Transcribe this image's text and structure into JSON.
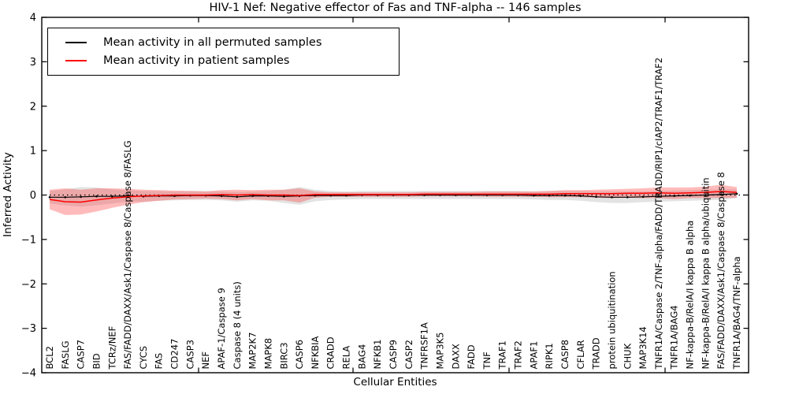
{
  "figure": {
    "title": "HIV-1 Nef: Negative effector of Fas and TNF-alpha -- 146 samples",
    "xlabel": "Cellular Entities",
    "ylabel": "Inferred Activity"
  },
  "legend": {
    "items": [
      {
        "label": "Mean activity in all permuted samples",
        "color": "#000000"
      },
      {
        "label": "Mean activity in patient samples",
        "color": "#ff0000"
      }
    ]
  },
  "axes": {
    "ytick_labels": [
      "4",
      "3",
      "2",
      "1",
      "0",
      "−1",
      "−2",
      "−3",
      "−4"
    ],
    "yticks": [
      4,
      3,
      2,
      1,
      0,
      -1,
      -2,
      -3,
      -4
    ],
    "ylim": [
      -4,
      4
    ]
  },
  "chart_data": {
    "type": "line",
    "title": "HIV-1 Nef: Negative effector of Fas and TNF-alpha -- 146 samples",
    "xlabel": "Cellular Entities",
    "ylabel": "Inferred Activity",
    "ylim": [
      -4,
      4
    ],
    "grid": false,
    "zero_reference_line": true,
    "legend_position": "upper left",
    "categories": [
      "BCL2",
      "FASLG",
      "CASP7",
      "BID",
      "TCRz/NEF",
      "FAS/FADD/DAXX/Ask1/Caspase 8/Caspase 8/FASLG",
      "CYCS",
      "FAS",
      "CD247",
      "CASP3",
      "NEF",
      "APAF-1/Caspase 9",
      "Caspase 8 (4 units)",
      "MAP2K7",
      "MAPK8",
      "BIRC3",
      "CASP6",
      "NFKBIA",
      "CRADD",
      "RELA",
      "BAG4",
      "NFKB1",
      "CASP9",
      "CASP2",
      "TNFRSF1A",
      "MAP3K5",
      "DAXX",
      "FADD",
      "TNF",
      "TRAF1",
      "TRAF2",
      "APAF1",
      "RIPK1",
      "CASP8",
      "CFLAR",
      "TRADD",
      "protein ubiquitination",
      "CHUK",
      "MAP3K14",
      "TNFR1A/Caspase 2/TNF-alpha/FADD/TRADD/RIP1/cIAP2/TRAF1/TRAF2",
      "TNFR1A/BAG4",
      "NF-kappa-B/RelA/I kappa B alpha",
      "NF-kappa-B/RelA/I kappa B alpha/ubiquitin",
      "FAS/FADD/DAXX/Ask1/Caspase 8/Caspase 8",
      "TNFR1A/BAG4/TNF-alpha"
    ],
    "series": [
      {
        "name": "Mean activity in all permuted samples",
        "color": "#000000",
        "band_color": "#b0b0b0",
        "band_opacity": 0.35,
        "markers": true,
        "mean": [
          -0.05,
          -0.05,
          -0.04,
          -0.03,
          -0.03,
          -0.02,
          -0.03,
          -0.02,
          -0.02,
          -0.01,
          -0.01,
          -0.02,
          -0.04,
          -0.02,
          -0.02,
          -0.03,
          -0.02,
          -0.01,
          -0.01,
          -0.01,
          0,
          0,
          0,
          0,
          0,
          0,
          0,
          0,
          0,
          0,
          0,
          -0.01,
          -0.01,
          -0.01,
          -0.02,
          -0.04,
          -0.05,
          -0.05,
          -0.04,
          -0.03,
          -0.02,
          -0.01,
          0,
          0.01,
          0.03
        ],
        "std": [
          0.14,
          0.18,
          0.22,
          0.2,
          0.16,
          0.13,
          0.12,
          0.11,
          0.1,
          0.1,
          0.1,
          0.1,
          0.11,
          0.1,
          0.11,
          0.15,
          0.2,
          0.13,
          0.1,
          0.09,
          0.09,
          0.09,
          0.09,
          0.09,
          0.09,
          0.09,
          0.09,
          0.09,
          0.09,
          0.09,
          0.09,
          0.09,
          0.1,
          0.1,
          0.11,
          0.12,
          0.13,
          0.13,
          0.12,
          0.12,
          0.12,
          0.12,
          0.12,
          0.12,
          0.1
        ]
      },
      {
        "name": "Mean activity in patient samples",
        "color": "#ff0000",
        "band_color": "#ff2a2a",
        "band_opacity": 0.32,
        "markers": false,
        "mean": [
          -0.1,
          -0.15,
          -0.16,
          -0.11,
          -0.07,
          -0.04,
          -0.02,
          -0.01,
          0,
          0,
          0,
          0.01,
          0,
          0.01,
          0,
          0,
          -0.01,
          0.01,
          0.01,
          0.01,
          0.01,
          0.01,
          0.01,
          0.01,
          0.02,
          0.02,
          0.02,
          0.02,
          0.02,
          0.02,
          0.02,
          0.02,
          0.02,
          0.03,
          0.03,
          0.03,
          0.03,
          0.04,
          0.04,
          0.05,
          0.04,
          0.05,
          0.06,
          0.08,
          0.06
        ],
        "std": [
          0.22,
          0.3,
          0.28,
          0.26,
          0.22,
          0.18,
          0.14,
          0.12,
          0.1,
          0.09,
          0.08,
          0.1,
          0.12,
          0.1,
          0.12,
          0.12,
          0.16,
          0.07,
          0.05,
          0.05,
          0.05,
          0.05,
          0.05,
          0.05,
          0.05,
          0.05,
          0.05,
          0.05,
          0.06,
          0.06,
          0.06,
          0.06,
          0.07,
          0.08,
          0.08,
          0.09,
          0.1,
          0.1,
          0.11,
          0.12,
          0.13,
          0.12,
          0.13,
          0.15,
          0.12
        ]
      }
    ]
  }
}
